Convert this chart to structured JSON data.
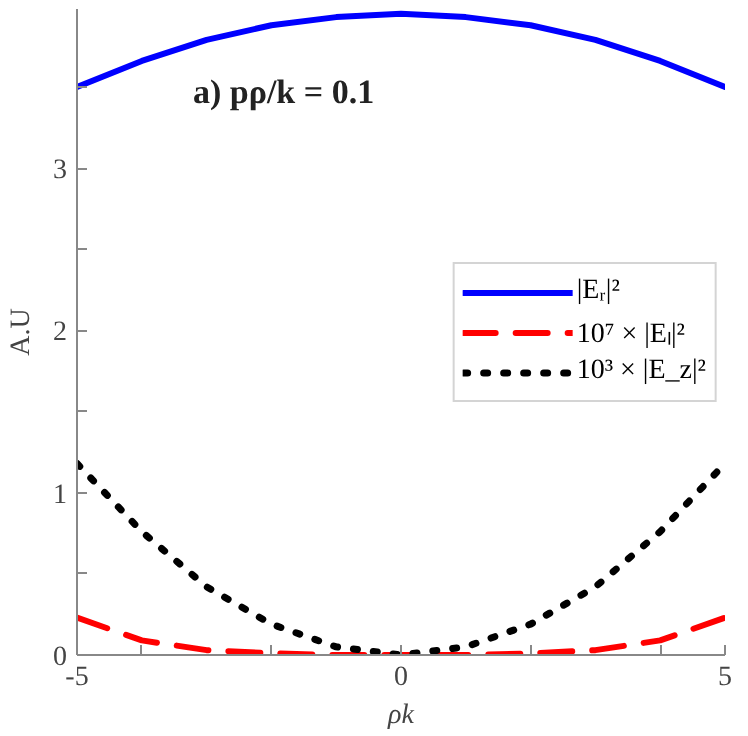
{
  "chart_data": {
    "type": "line",
    "xlabel": "ρk",
    "ylabel": "A.U",
    "annotations": [
      "a) pρ/k = 0.1"
    ],
    "x": [
      -5,
      -4,
      -3,
      -2,
      -1,
      0,
      1,
      2,
      3,
      4,
      5
    ],
    "series": [
      {
        "name": "|Eᵣ|²",
        "color": "#0000ff",
        "line_style": "solid",
        "values": [
          3.5,
          3.66,
          3.79,
          3.88,
          3.93,
          3.95,
          3.93,
          3.88,
          3.79,
          3.66,
          3.5
        ]
      },
      {
        "name": "10⁷ × |Eₗ|²",
        "color": "#ff0000",
        "line_style": "dashed",
        "values": [
          0.23,
          0.09,
          0.03,
          0.01,
          0.0,
          0.0,
          0.0,
          0.01,
          0.03,
          0.09,
          0.23
        ]
      },
      {
        "name": "10³ × |E_z|²",
        "color": "#000000",
        "line_style": "dotted",
        "values": [
          1.18,
          0.76,
          0.42,
          0.19,
          0.05,
          0.0,
          0.05,
          0.19,
          0.42,
          0.76,
          1.18
        ]
      }
    ],
    "xlim": [
      -5,
      5
    ],
    "ylim": [
      0,
      3.98
    ],
    "xticks": [
      -5,
      {
        "value": -4,
        "label": null
      },
      {
        "value": -2,
        "label": null
      },
      0,
      {
        "value": 2,
        "label": null
      },
      {
        "value": 4,
        "label": null
      },
      5
    ],
    "yticks": [
      0,
      {
        "value": 0.5,
        "label": null
      },
      1,
      {
        "value": 1.5,
        "label": null
      },
      2,
      {
        "value": 2.5,
        "label": null
      },
      3,
      {
        "value": 3.5,
        "label": null
      }
    ],
    "grid": false,
    "legend": "right",
    "marker": "none"
  }
}
